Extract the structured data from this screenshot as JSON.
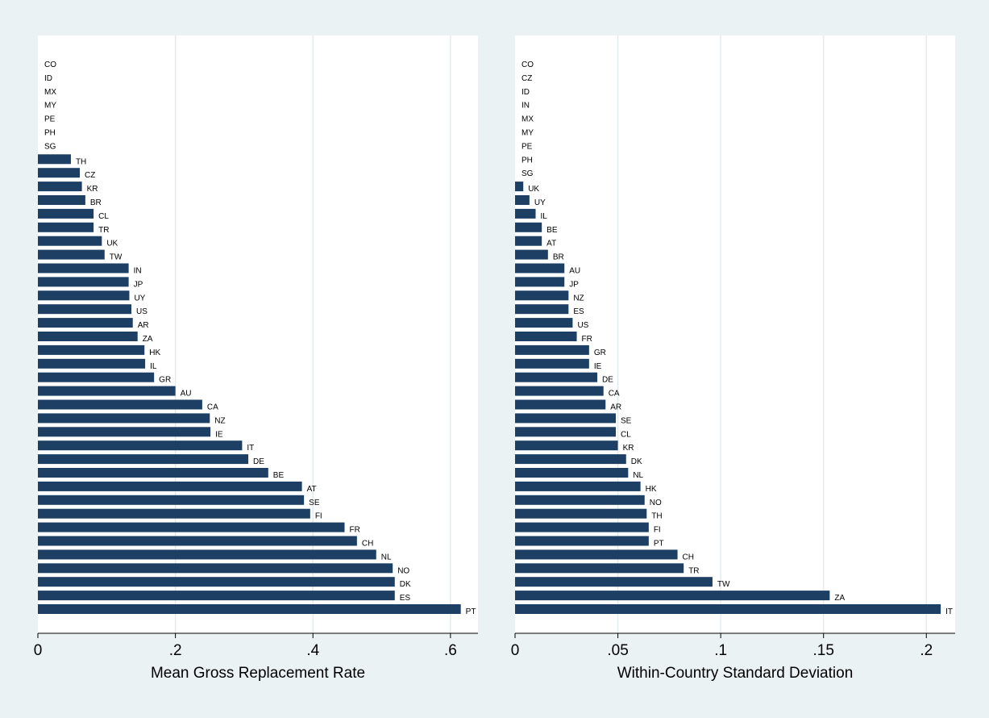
{
  "colors": {
    "bar": "#1c3f63",
    "background": "#eaf2f3",
    "panel": "#ffffff",
    "grid": "#e4ebee",
    "text": "#000000"
  },
  "chart_data": [
    {
      "type": "bar",
      "orientation": "horizontal",
      "xlabel": "Mean Gross Replacement Rate",
      "ylabel": "",
      "xlim": [
        0,
        0.64
      ],
      "xticks": [
        0,
        0.2,
        0.4,
        0.6
      ],
      "xtick_labels": [
        "0",
        ".2",
        ".4",
        ".6"
      ],
      "grid": true,
      "legend": "none",
      "categories": [
        "CO",
        "ID",
        "MX",
        "MY",
        "PE",
        "PH",
        "SG",
        "TH",
        "CZ",
        "KR",
        "BR",
        "CL",
        "TR",
        "UK",
        "TW",
        "IN",
        "JP",
        "UY",
        "US",
        "AR",
        "ZA",
        "HK",
        "IL",
        "GR",
        "AU",
        "CA",
        "NZ",
        "IE",
        "IT",
        "DE",
        "BE",
        "AT",
        "SE",
        "FI",
        "FR",
        "CH",
        "NL",
        "NO",
        "DK",
        "ES",
        "PT"
      ],
      "values": [
        0,
        0,
        0,
        0,
        0,
        0,
        0,
        0.048,
        0.061,
        0.064,
        0.069,
        0.081,
        0.081,
        0.093,
        0.097,
        0.132,
        0.132,
        0.133,
        0.136,
        0.138,
        0.145,
        0.155,
        0.156,
        0.169,
        0.2,
        0.239,
        0.25,
        0.251,
        0.297,
        0.306,
        0.335,
        0.384,
        0.387,
        0.396,
        0.446,
        0.464,
        0.492,
        0.516,
        0.519,
        0.519,
        0.615
      ]
    },
    {
      "type": "bar",
      "orientation": "horizontal",
      "xlabel": "Within-Country Standard Deviation",
      "ylabel": "",
      "xlim": [
        0,
        0.214
      ],
      "xticks": [
        0,
        0.05,
        0.1,
        0.15,
        0.2
      ],
      "xtick_labels": [
        "0",
        ".05",
        ".1",
        ".15",
        ".2"
      ],
      "grid": true,
      "legend": "none",
      "categories": [
        "CO",
        "CZ",
        "ID",
        "IN",
        "MX",
        "MY",
        "PE",
        "PH",
        "SG",
        "UK",
        "UY",
        "IL",
        "BE",
        "AT",
        "BR",
        "AU",
        "JP",
        "NZ",
        "ES",
        "US",
        "FR",
        "GR",
        "IE",
        "DE",
        "CA",
        "AR",
        "SE",
        "CL",
        "KR",
        "DK",
        "NL",
        "HK",
        "NO",
        "TH",
        "FI",
        "PT",
        "CH",
        "TR",
        "TW",
        "ZA",
        "IT"
      ],
      "values": [
        0,
        0,
        0,
        0,
        0,
        0,
        0,
        0,
        0,
        0.004,
        0.007,
        0.01,
        0.013,
        0.013,
        0.016,
        0.024,
        0.024,
        0.026,
        0.026,
        0.028,
        0.03,
        0.036,
        0.036,
        0.04,
        0.043,
        0.044,
        0.049,
        0.049,
        0.05,
        0.054,
        0.055,
        0.061,
        0.063,
        0.064,
        0.065,
        0.065,
        0.079,
        0.082,
        0.096,
        0.153,
        0.207
      ]
    }
  ]
}
